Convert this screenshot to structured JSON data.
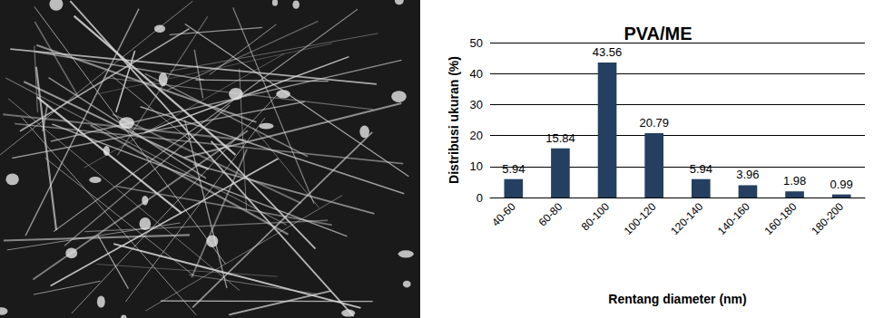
{
  "chart_data": {
    "type": "bar",
    "title": "PVA/ME",
    "x_label": "Rentang diameter (nm)",
    "y_label": "Distribusi ukuran (%)",
    "categories": [
      "40-60",
      "60-80",
      "80-100",
      "100-120",
      "120-140",
      "140-160",
      "160-180",
      "180-200"
    ],
    "values": [
      5.94,
      15.84,
      43.56,
      20.79,
      5.94,
      3.96,
      1.98,
      0.99
    ],
    "color": "#243f60",
    "ylim": [
      0,
      50
    ],
    "yticks": [
      0,
      10,
      20,
      30,
      40,
      50
    ],
    "grid": true,
    "data_labels": true
  }
}
